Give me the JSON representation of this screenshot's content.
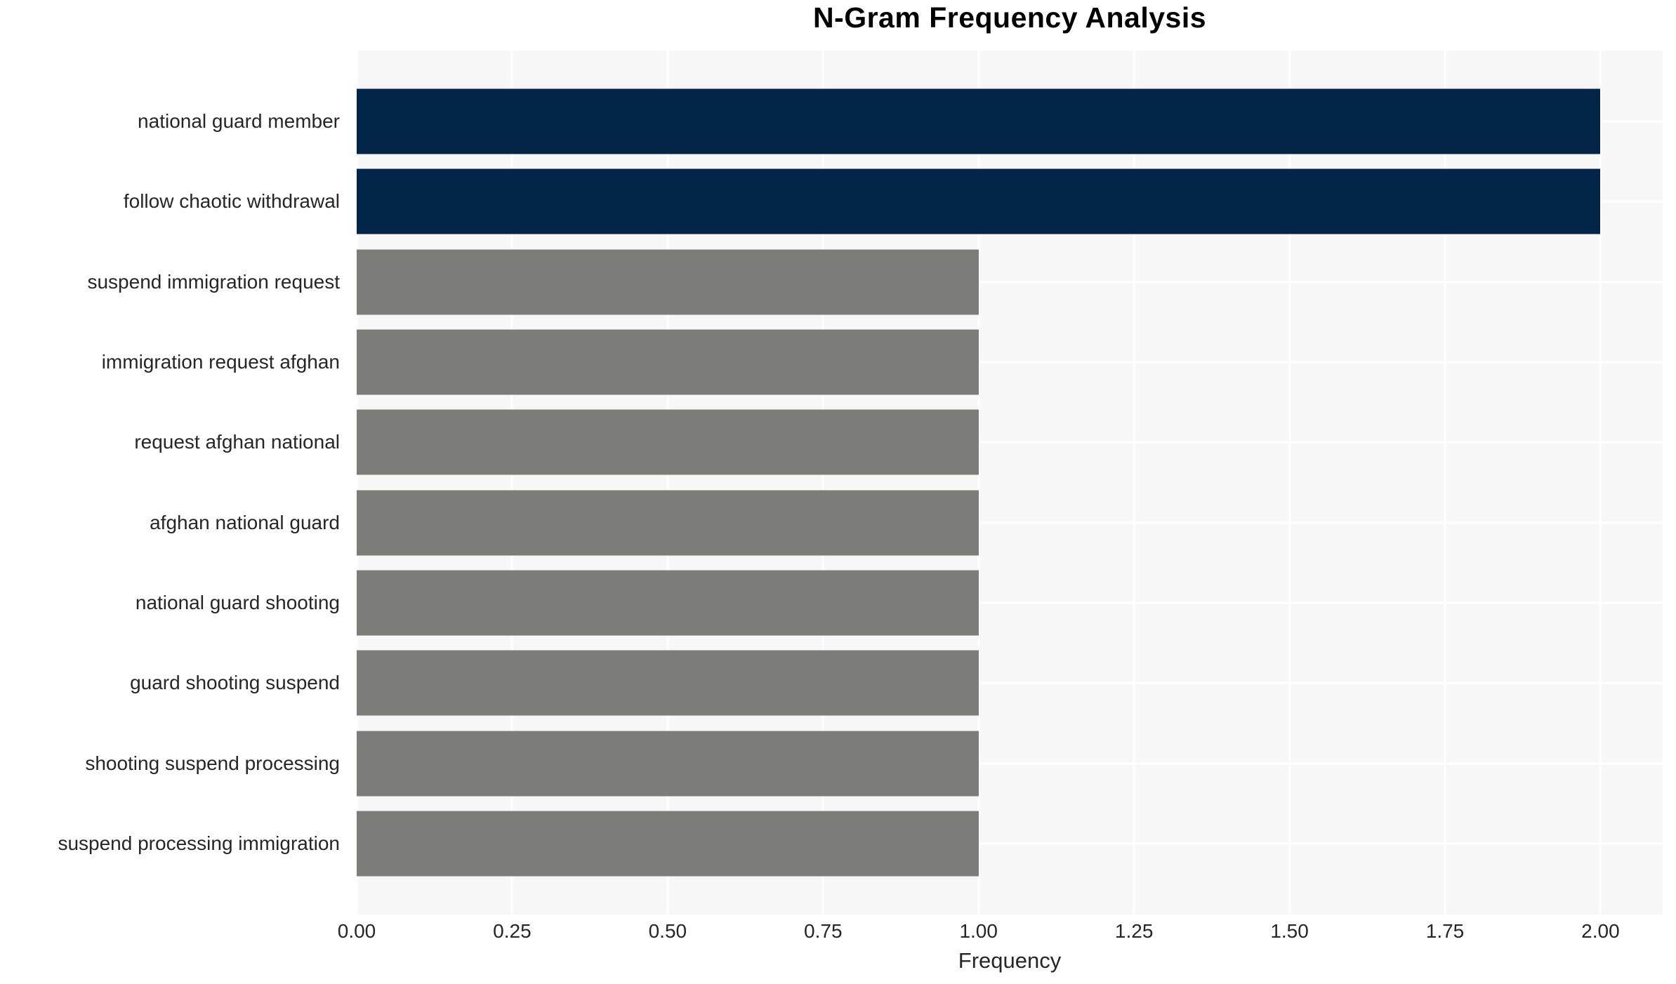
{
  "chart_data": {
    "type": "bar",
    "orientation": "horizontal",
    "title": "N-Gram Frequency Analysis",
    "categories": [
      "national guard member",
      "follow chaotic withdrawal",
      "suspend immigration request",
      "immigration request afghan",
      "request afghan national",
      "afghan national guard",
      "national guard shooting",
      "guard shooting suspend",
      "shooting suspend processing",
      "suspend processing immigration"
    ],
    "values": [
      2,
      2,
      1,
      1,
      1,
      1,
      1,
      1,
      1,
      1
    ],
    "bar_colors": [
      "#032449",
      "#032449",
      "#7c7c79",
      "#7c7c79",
      "#7c7c79",
      "#7c7c79",
      "#7c7c79",
      "#7c7c79",
      "#7c7c79",
      "#7c7c79"
    ],
    "xlabel": "Frequency",
    "ylabel": "",
    "xlim": [
      0,
      2.1
    ],
    "xticks": [
      0,
      0.25,
      0.5,
      0.75,
      1.0,
      1.25,
      1.5,
      1.75,
      2.0
    ],
    "xtick_labels": [
      "0.00",
      "0.25",
      "0.50",
      "0.75",
      "1.00",
      "1.25",
      "1.50",
      "1.75",
      "2.00"
    ],
    "grid": true,
    "legend_position": "none",
    "colors": {
      "high_bar": "#032449",
      "low_bar": "#7c7c79",
      "plot_background": "#f7f7f7",
      "gridline": "#ffffff",
      "tick_text": "#262626",
      "title_text": "#000000"
    }
  }
}
